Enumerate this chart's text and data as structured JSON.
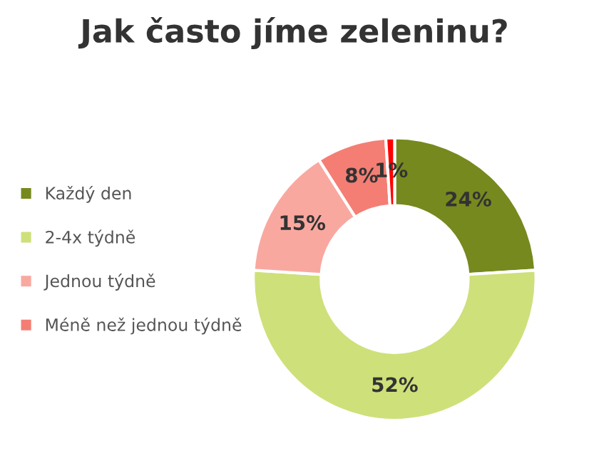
{
  "chart_data": {
    "type": "donut",
    "title": "Jak často jíme zeleninu?",
    "categories": [
      "Každý den",
      "2-4x týdně",
      "Jednou týdně",
      "Méně než jednou týdně",
      null
    ],
    "values": [
      24,
      52,
      15,
      8,
      1
    ],
    "colors": [
      "#76891e",
      "#cee07a",
      "#f9a8a0",
      "#f47e74",
      "#ff0000"
    ],
    "value_labels": [
      "24%",
      "52%",
      "15%",
      "8%",
      "1%"
    ],
    "legend": "left"
  }
}
